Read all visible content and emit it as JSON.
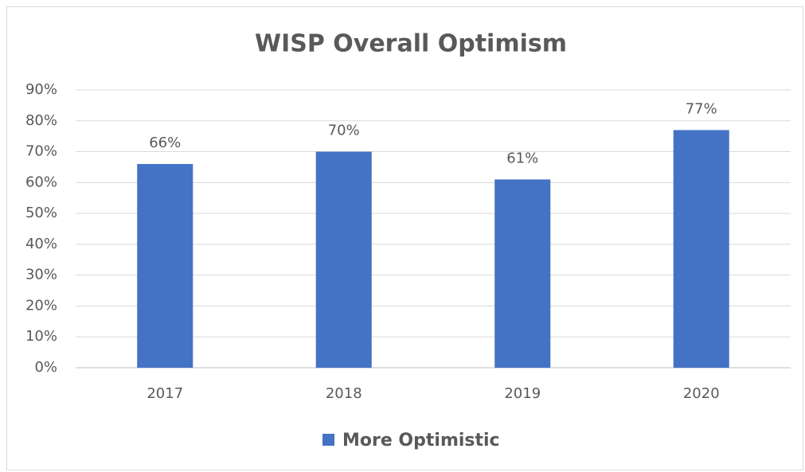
{
  "chart_data": {
    "type": "bar",
    "title": "WISP Overall Optimism",
    "categories": [
      "2017",
      "2018",
      "2019",
      "2020"
    ],
    "series": [
      {
        "name": "More Optimistic",
        "color": "#4472c4",
        "values": [
          66,
          70,
          61,
          77
        ],
        "value_labels": [
          "66%",
          "70%",
          "61%",
          "77%"
        ]
      }
    ],
    "ylim": [
      0,
      90
    ],
    "yticks": [
      {
        "value": 0,
        "label": "0%"
      },
      {
        "value": 10,
        "label": "10%"
      },
      {
        "value": 20,
        "label": "20%"
      },
      {
        "value": 30,
        "label": "30%"
      },
      {
        "value": 40,
        "label": "40%"
      },
      {
        "value": 50,
        "label": "50%"
      },
      {
        "value": 60,
        "label": "60%"
      },
      {
        "value": 70,
        "label": "70%"
      },
      {
        "value": 80,
        "label": "80%"
      },
      {
        "value": 90,
        "label": "90%"
      }
    ],
    "grid": true,
    "legend": "bottom"
  }
}
